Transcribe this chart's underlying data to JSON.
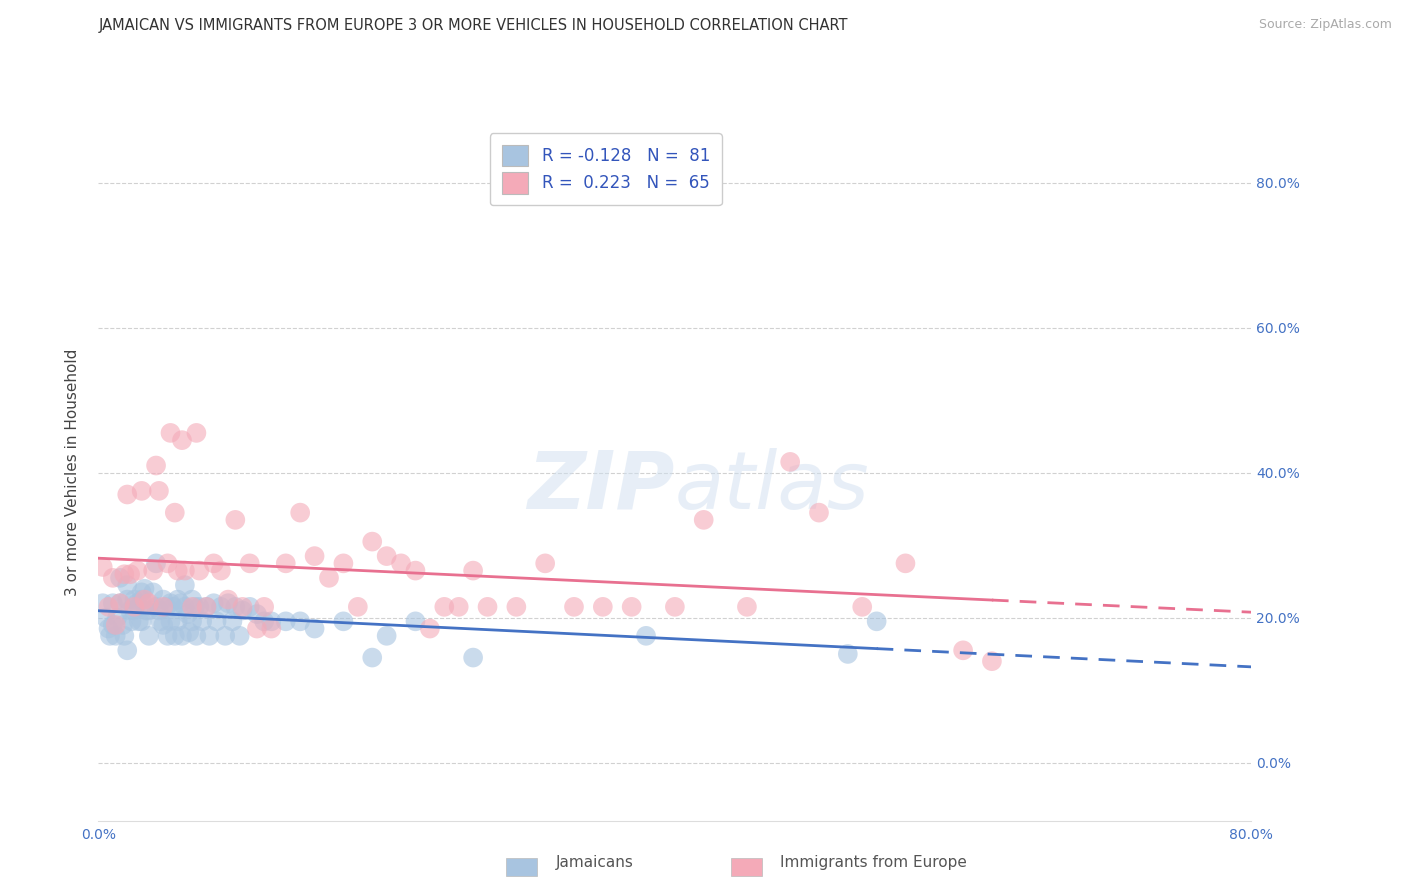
{
  "title": "JAMAICAN VS IMMIGRANTS FROM EUROPE 3 OR MORE VEHICLES IN HOUSEHOLD CORRELATION CHART",
  "source": "Source: ZipAtlas.com",
  "ylabel": "3 or more Vehicles in Household",
  "ytick_labels": [
    "0.0%",
    "20.0%",
    "40.0%",
    "60.0%",
    "80.0%"
  ],
  "ytick_values": [
    0.0,
    0.2,
    0.4,
    0.6,
    0.8
  ],
  "xtick_labels": [
    "0.0%",
    "80.0%"
  ],
  "xmin": 0.0,
  "xmax": 0.8,
  "ymin": -0.08,
  "ymax": 0.88,
  "legend_label1": "Jamaicans",
  "legend_label2": "Immigrants from Europe",
  "r1": "-0.128",
  "n1": "81",
  "r2": "0.223",
  "n2": "65",
  "color_blue": "#a8c4e0",
  "color_pink": "#f4aab8",
  "line_color_blue": "#4472c4",
  "line_color_pink": "#e87090",
  "watermark": "ZIPatlas",
  "jamaicans_x": [
    0.003,
    0.005,
    0.007,
    0.008,
    0.01,
    0.01,
    0.012,
    0.013,
    0.015,
    0.015,
    0.017,
    0.018,
    0.02,
    0.02,
    0.02,
    0.022,
    0.023,
    0.025,
    0.025,
    0.027,
    0.028,
    0.03,
    0.03,
    0.03,
    0.032,
    0.033,
    0.035,
    0.035,
    0.038,
    0.04,
    0.04,
    0.042,
    0.043,
    0.045,
    0.045,
    0.047,
    0.048,
    0.05,
    0.05,
    0.052,
    0.053,
    0.055,
    0.055,
    0.057,
    0.058,
    0.06,
    0.06,
    0.062,
    0.063,
    0.065,
    0.065,
    0.067,
    0.068,
    0.07,
    0.072,
    0.075,
    0.077,
    0.08,
    0.082,
    0.085,
    0.088,
    0.09,
    0.093,
    0.095,
    0.098,
    0.1,
    0.105,
    0.11,
    0.115,
    0.12,
    0.13,
    0.14,
    0.15,
    0.17,
    0.19,
    0.2,
    0.22,
    0.26,
    0.38,
    0.52,
    0.54
  ],
  "jamaicans_y": [
    0.22,
    0.2,
    0.185,
    0.175,
    0.22,
    0.19,
    0.175,
    0.2,
    0.255,
    0.22,
    0.19,
    0.175,
    0.245,
    0.225,
    0.155,
    0.21,
    0.195,
    0.225,
    0.21,
    0.22,
    0.195,
    0.235,
    0.225,
    0.195,
    0.24,
    0.21,
    0.21,
    0.175,
    0.235,
    0.275,
    0.215,
    0.21,
    0.195,
    0.225,
    0.19,
    0.215,
    0.175,
    0.22,
    0.195,
    0.215,
    0.175,
    0.225,
    0.195,
    0.22,
    0.175,
    0.245,
    0.215,
    0.205,
    0.18,
    0.225,
    0.195,
    0.215,
    0.175,
    0.215,
    0.195,
    0.215,
    0.175,
    0.22,
    0.195,
    0.215,
    0.175,
    0.22,
    0.195,
    0.215,
    0.175,
    0.21,
    0.215,
    0.205,
    0.195,
    0.195,
    0.195,
    0.195,
    0.185,
    0.195,
    0.145,
    0.175,
    0.195,
    0.145,
    0.175,
    0.15,
    0.195
  ],
  "europe_x": [
    0.003,
    0.007,
    0.01,
    0.012,
    0.015,
    0.018,
    0.02,
    0.022,
    0.025,
    0.027,
    0.03,
    0.032,
    0.035,
    0.038,
    0.04,
    0.042,
    0.045,
    0.048,
    0.05,
    0.053,
    0.055,
    0.058,
    0.06,
    0.065,
    0.068,
    0.07,
    0.075,
    0.08,
    0.085,
    0.09,
    0.095,
    0.1,
    0.105,
    0.11,
    0.115,
    0.12,
    0.13,
    0.14,
    0.15,
    0.16,
    0.17,
    0.18,
    0.19,
    0.2,
    0.21,
    0.22,
    0.23,
    0.24,
    0.25,
    0.26,
    0.27,
    0.29,
    0.31,
    0.33,
    0.35,
    0.37,
    0.4,
    0.42,
    0.45,
    0.48,
    0.5,
    0.53,
    0.56,
    0.6,
    0.62
  ],
  "europe_y": [
    0.27,
    0.215,
    0.255,
    0.19,
    0.22,
    0.26,
    0.37,
    0.26,
    0.215,
    0.265,
    0.375,
    0.225,
    0.22,
    0.265,
    0.41,
    0.375,
    0.215,
    0.275,
    0.455,
    0.345,
    0.265,
    0.445,
    0.265,
    0.215,
    0.455,
    0.265,
    0.215,
    0.275,
    0.265,
    0.225,
    0.335,
    0.215,
    0.275,
    0.185,
    0.215,
    0.185,
    0.275,
    0.345,
    0.285,
    0.255,
    0.275,
    0.215,
    0.305,
    0.285,
    0.275,
    0.265,
    0.185,
    0.215,
    0.215,
    0.265,
    0.215,
    0.215,
    0.275,
    0.215,
    0.215,
    0.215,
    0.215,
    0.335,
    0.215,
    0.415,
    0.345,
    0.215,
    0.275,
    0.155,
    0.14
  ]
}
